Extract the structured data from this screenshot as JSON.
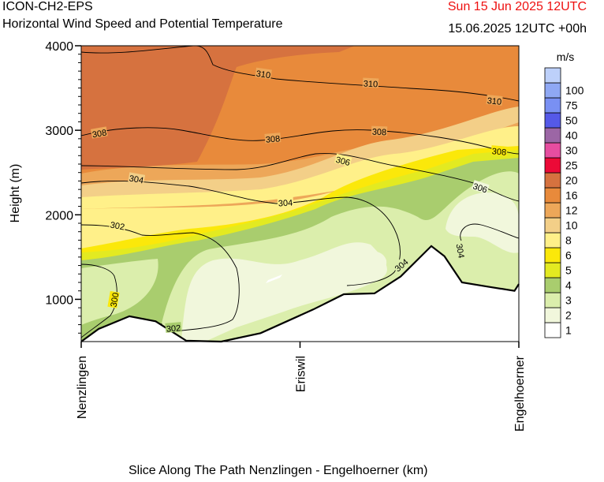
{
  "header": {
    "model": "ICON-CH2-EPS",
    "title": "Horizontal Wind Speed and Potential Temperature",
    "date": "Sun 15 Jun 2025 12UTC",
    "run": "15.06.2025 12UTC +00h"
  },
  "footer": {
    "xlabel": "Slice Along The Path Nenzlingen - Engelhoerner (km)"
  },
  "colors": {
    "date_text": "#ee1111",
    "terrain_line": "#000000"
  },
  "chart_data": {
    "type": "heatmap",
    "ylabel": "Height (m)",
    "yticks": [
      1000,
      2000,
      3000,
      4000
    ],
    "ylim": [
      500,
      4000
    ],
    "xticks": [
      "Nenzlingen",
      "Eriswil",
      "Engelhoerner"
    ],
    "colorbar": {
      "unit": "m/s",
      "levels": [
        {
          "label": "1",
          "color": "#ffffff"
        },
        {
          "label": "2",
          "color": "#f1f7dc"
        },
        {
          "label": "3",
          "color": "#dbeeac"
        },
        {
          "label": "4",
          "color": "#a9cd6e"
        },
        {
          "label": "5",
          "color": "#e3ea21"
        },
        {
          "label": "6",
          "color": "#fbe80a"
        },
        {
          "label": "8",
          "color": "#fff089"
        },
        {
          "label": "10",
          "color": "#f3cf88"
        },
        {
          "label": "12",
          "color": "#eda759"
        },
        {
          "label": "16",
          "color": "#e88a3b"
        },
        {
          "label": "20",
          "color": "#d6723f"
        },
        {
          "label": "25",
          "color": "#ec0a37"
        },
        {
          "label": "30",
          "color": "#e64da0"
        },
        {
          "label": "40",
          "color": "#9c66a5"
        },
        {
          "label": "50",
          "color": "#5559e8"
        },
        {
          "label": "75",
          "color": "#7990f3"
        },
        {
          "label": "100",
          "color": "#8fa8f4"
        },
        {
          "label": "",
          "color": "#bdd0fa"
        }
      ]
    },
    "isentropes": [
      {
        "theta": 300,
        "label": "300"
      },
      {
        "theta": 302,
        "label": "302"
      },
      {
        "theta": 304,
        "label": "304"
      },
      {
        "theta": 306,
        "label": "306"
      },
      {
        "theta": 308,
        "label": "308"
      },
      {
        "theta": 310,
        "label": "310"
      }
    ],
    "terrain_profile": {
      "x": [
        0,
        0.04,
        0.11,
        0.17,
        0.24,
        0.32,
        0.41,
        0.53,
        0.6,
        0.67,
        0.73,
        0.8,
        0.83,
        0.87,
        0.93,
        0.99,
        1.0
      ],
      "height_m": [
        500,
        650,
        800,
        740,
        510,
        500,
        600,
        880,
        1060,
        1070,
        1270,
        1630,
        1510,
        1200,
        1150,
        1100,
        1180
      ]
    }
  }
}
